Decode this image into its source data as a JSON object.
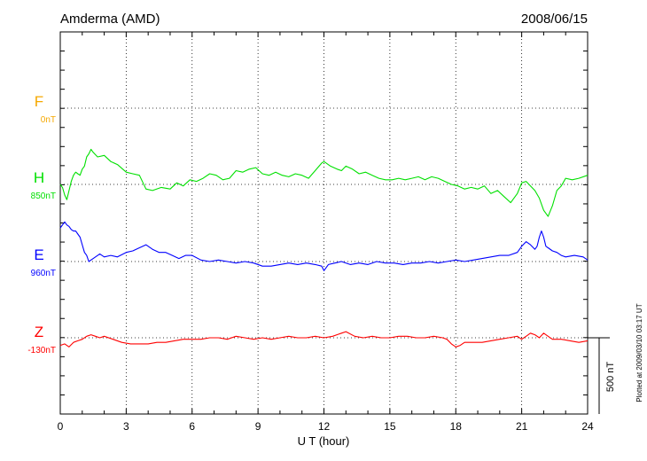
{
  "chart_data": {
    "type": "line",
    "title": "Amderma (AMD)",
    "date": "2008/06/15",
    "xlabel": "U T (hour)",
    "xlim": [
      0,
      24
    ],
    "xticks": [
      "0",
      "3",
      "6",
      "9",
      "12",
      "15",
      "18",
      "21",
      "24"
    ],
    "scale_bar": "500 nT",
    "footer": "Plotted at 2009/03/10 03:17 UT",
    "grid": true,
    "series": [
      {
        "name": "F",
        "baseline_label": "0nT",
        "color": "#f5a800",
        "x": [],
        "y": []
      },
      {
        "name": "H",
        "baseline_label": "850nT",
        "color": "#00e000",
        "x": [
          0,
          0.1,
          0.2,
          0.3,
          0.4,
          0.5,
          0.6,
          0.7,
          0.8,
          0.9,
          1.0,
          1.1,
          1.2,
          1.3,
          1.4,
          1.5,
          1.7,
          2.0,
          2.3,
          2.6,
          3.0,
          3.3,
          3.6,
          3.9,
          4.2,
          4.6,
          5.0,
          5.3,
          5.6,
          5.9,
          6.2,
          6.5,
          6.8,
          7.1,
          7.4,
          7.7,
          8.0,
          8.3,
          8.6,
          8.9,
          9.2,
          9.5,
          9.8,
          10.1,
          10.4,
          10.7,
          11.0,
          11.3,
          11.6,
          11.9,
          12.0,
          12.3,
          12.6,
          12.8,
          13.0,
          13.3,
          13.6,
          13.9,
          14.2,
          14.5,
          14.8,
          15.1,
          15.4,
          15.7,
          16.0,
          16.3,
          16.6,
          16.9,
          17.2,
          17.5,
          17.8,
          18.1,
          18.4,
          18.7,
          19.0,
          19.3,
          19.6,
          19.9,
          20.2,
          20.5,
          20.8,
          21.0,
          21.2,
          21.4,
          21.6,
          21.8,
          22.0,
          22.2,
          22.4,
          22.6,
          22.8,
          23.0,
          23.3,
          23.6,
          24.0
        ],
        "y": [
          0,
          -20,
          -70,
          -100,
          -40,
          20,
          60,
          80,
          70,
          60,
          100,
          120,
          180,
          200,
          230,
          210,
          180,
          190,
          150,
          130,
          80,
          70,
          60,
          -30,
          -40,
          -20,
          -30,
          10,
          -10,
          30,
          20,
          40,
          70,
          60,
          30,
          40,
          90,
          80,
          100,
          110,
          70,
          60,
          80,
          60,
          50,
          70,
          60,
          40,
          90,
          140,
          150,
          120,
          100,
          90,
          120,
          100,
          70,
          80,
          60,
          40,
          30,
          30,
          40,
          30,
          40,
          50,
          30,
          50,
          40,
          20,
          0,
          -10,
          -30,
          -20,
          -30,
          -10,
          -60,
          -40,
          -80,
          -120,
          -60,
          10,
          20,
          -10,
          -40,
          -90,
          -170,
          -210,
          -140,
          -40,
          -10,
          40,
          30,
          40,
          60
        ]
      },
      {
        "name": "E",
        "baseline_label": "960nT",
        "color": "#0000ff",
        "x": [
          0,
          0.1,
          0.2,
          0.3,
          0.4,
          0.5,
          0.6,
          0.7,
          0.8,
          0.9,
          1.0,
          1.1,
          1.2,
          1.3,
          1.5,
          1.8,
          2.0,
          2.3,
          2.6,
          3.0,
          3.3,
          3.6,
          3.9,
          4.2,
          4.5,
          4.8,
          5.1,
          5.4,
          5.7,
          6.0,
          6.4,
          6.8,
          7.2,
          7.6,
          8.0,
          8.4,
          8.8,
          9.2,
          9.6,
          10.0,
          10.4,
          10.8,
          11.2,
          11.6,
          11.9,
          12.0,
          12.2,
          12.5,
          12.8,
          13.2,
          13.6,
          14.0,
          14.4,
          14.8,
          15.2,
          15.6,
          16.0,
          16.4,
          16.8,
          17.2,
          17.6,
          18.0,
          18.4,
          18.8,
          19.2,
          19.6,
          20.0,
          20.4,
          20.8,
          21.0,
          21.2,
          21.4,
          21.6,
          21.7,
          21.8,
          21.9,
          22.0,
          22.1,
          22.2,
          22.4,
          22.6,
          22.8,
          23.0,
          23.4,
          23.8,
          24.0
        ],
        "y": [
          220,
          240,
          260,
          240,
          230,
          210,
          200,
          200,
          180,
          160,
          110,
          60,
          40,
          0,
          20,
          50,
          30,
          40,
          30,
          60,
          70,
          90,
          110,
          80,
          60,
          60,
          40,
          20,
          40,
          40,
          10,
          0,
          10,
          0,
          -10,
          0,
          -10,
          -30,
          -30,
          -20,
          -10,
          -20,
          -10,
          -20,
          -30,
          -60,
          -20,
          -10,
          0,
          -20,
          -10,
          -20,
          0,
          -10,
          -10,
          -20,
          -10,
          -10,
          0,
          -10,
          0,
          10,
          0,
          10,
          20,
          30,
          40,
          40,
          60,
          100,
          130,
          110,
          80,
          100,
          160,
          200,
          160,
          100,
          90,
          70,
          60,
          40,
          30,
          40,
          30,
          10
        ]
      },
      {
        "name": "Z",
        "baseline_label": "-130nT",
        "color": "#ff0000",
        "x": [
          0,
          0.2,
          0.4,
          0.6,
          0.8,
          1.0,
          1.2,
          1.4,
          1.6,
          1.8,
          2.0,
          2.4,
          2.8,
          3.2,
          3.6,
          4.0,
          4.4,
          4.8,
          5.2,
          5.6,
          6.0,
          6.4,
          6.8,
          7.2,
          7.6,
          8.0,
          8.4,
          8.8,
          9.2,
          9.6,
          10.0,
          10.4,
          10.8,
          11.2,
          11.6,
          12.0,
          12.4,
          12.8,
          13.0,
          13.4,
          13.8,
          14.2,
          14.6,
          15.0,
          15.4,
          15.8,
          16.2,
          16.6,
          17.0,
          17.4,
          17.6,
          17.8,
          18.0,
          18.2,
          18.4,
          18.8,
          19.2,
          19.6,
          20.0,
          20.4,
          20.8,
          21.0,
          21.2,
          21.4,
          21.6,
          21.8,
          22.0,
          22.2,
          22.4,
          22.8,
          23.2,
          23.6,
          24.0
        ],
        "y": [
          -50,
          -40,
          -60,
          -30,
          -20,
          -10,
          10,
          20,
          10,
          0,
          10,
          -10,
          -30,
          -40,
          -40,
          -40,
          -30,
          -30,
          -20,
          -10,
          -10,
          -10,
          0,
          0,
          -10,
          10,
          0,
          -10,
          0,
          -10,
          0,
          10,
          0,
          0,
          10,
          0,
          10,
          30,
          40,
          10,
          0,
          10,
          0,
          0,
          10,
          10,
          0,
          0,
          10,
          0,
          -10,
          -40,
          -60,
          -50,
          -30,
          -30,
          -30,
          -20,
          -10,
          0,
          10,
          -10,
          10,
          30,
          20,
          0,
          30,
          10,
          -10,
          -10,
          -20,
          -30,
          -20
        ]
      }
    ]
  }
}
